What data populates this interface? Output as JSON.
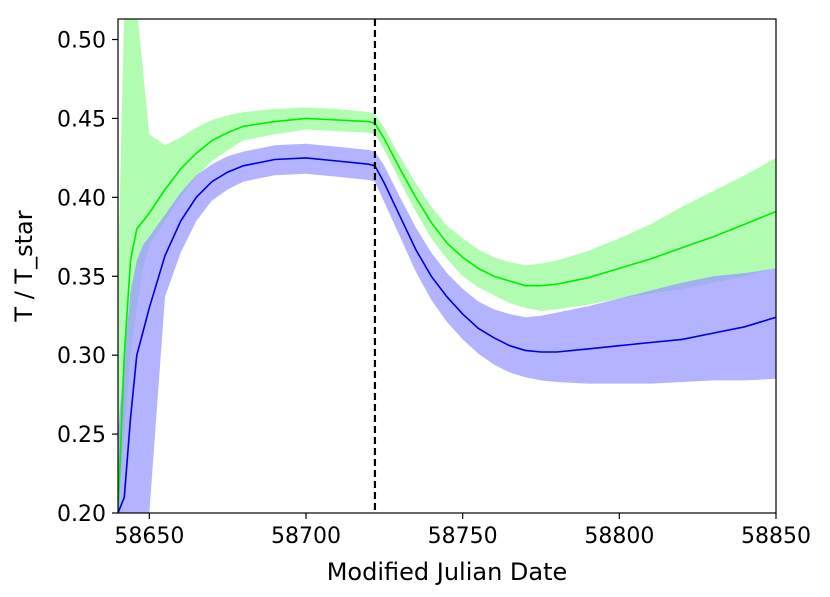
{
  "chart_data": {
    "type": "line",
    "title": "",
    "xlabel": "Modified Julian Date",
    "ylabel": "T / T_star",
    "xlim": [
      58640,
      58850
    ],
    "ylim": [
      0.2,
      0.513
    ],
    "xticks": [
      58650,
      58700,
      58750,
      58800,
      58850
    ],
    "yticks": [
      0.2,
      0.25,
      0.3,
      0.35,
      0.4,
      0.45,
      0.5
    ],
    "grid": false,
    "legend": "none",
    "vertical_line": {
      "x": 58722,
      "style": "dashed",
      "color": "#000000"
    },
    "series": [
      {
        "color": "#00ee00",
        "band_color": "#98fb98",
        "x": [
          58640,
          58642,
          58644,
          58646,
          58648,
          58650,
          58655,
          58660,
          58665,
          58670,
          58675,
          58680,
          58690,
          58700,
          58710,
          58720,
          58722,
          58725,
          58730,
          58735,
          58740,
          58745,
          58750,
          58755,
          58760,
          58765,
          58770,
          58775,
          58780,
          58790,
          58800,
          58810,
          58820,
          58830,
          58840,
          58850
        ],
        "y": [
          0.2,
          0.3,
          0.36,
          0.38,
          0.385,
          0.39,
          0.405,
          0.418,
          0.428,
          0.436,
          0.441,
          0.445,
          0.448,
          0.45,
          0.449,
          0.448,
          0.447,
          0.437,
          0.418,
          0.4,
          0.384,
          0.371,
          0.362,
          0.355,
          0.35,
          0.347,
          0.344,
          0.344,
          0.345,
          0.349,
          0.355,
          0.361,
          0.368,
          0.375,
          0.383,
          0.391
        ],
        "upper": [
          0.35,
          0.52,
          0.53,
          0.52,
          0.48,
          0.44,
          0.433,
          0.438,
          0.444,
          0.449,
          0.452,
          0.454,
          0.456,
          0.457,
          0.456,
          0.454,
          0.453,
          0.444,
          0.426,
          0.409,
          0.394,
          0.382,
          0.374,
          0.367,
          0.362,
          0.359,
          0.357,
          0.358,
          0.36,
          0.366,
          0.374,
          0.383,
          0.394,
          0.404,
          0.414,
          0.425
        ],
        "lower": [
          0.2,
          0.25,
          0.3,
          0.33,
          0.355,
          0.37,
          0.385,
          0.4,
          0.413,
          0.423,
          0.43,
          0.436,
          0.44,
          0.443,
          0.442,
          0.441,
          0.44,
          0.43,
          0.41,
          0.391,
          0.374,
          0.361,
          0.35,
          0.343,
          0.338,
          0.333,
          0.33,
          0.328,
          0.329,
          0.332,
          0.336,
          0.339,
          0.342,
          0.346,
          0.35,
          0.355
        ]
      },
      {
        "color": "#0000dd",
        "band_color": "#9999ff",
        "x": [
          58640,
          58642,
          58644,
          58646,
          58648,
          58650,
          58655,
          58660,
          58665,
          58670,
          58675,
          58680,
          58690,
          58700,
          58710,
          58720,
          58722,
          58725,
          58730,
          58735,
          58740,
          58745,
          58750,
          58755,
          58760,
          58765,
          58770,
          58775,
          58780,
          58790,
          58800,
          58810,
          58820,
          58830,
          58840,
          58850
        ],
        "y": [
          0.2,
          0.21,
          0.26,
          0.3,
          0.315,
          0.33,
          0.363,
          0.385,
          0.4,
          0.41,
          0.416,
          0.42,
          0.424,
          0.425,
          0.423,
          0.421,
          0.42,
          0.409,
          0.388,
          0.367,
          0.35,
          0.337,
          0.326,
          0.317,
          0.311,
          0.306,
          0.303,
          0.302,
          0.302,
          0.304,
          0.306,
          0.308,
          0.31,
          0.314,
          0.318,
          0.324
        ],
        "upper": [
          0.25,
          0.3,
          0.34,
          0.36,
          0.37,
          0.375,
          0.389,
          0.403,
          0.414,
          0.421,
          0.426,
          0.429,
          0.433,
          0.434,
          0.432,
          0.43,
          0.429,
          0.42,
          0.4,
          0.381,
          0.365,
          0.352,
          0.342,
          0.334,
          0.329,
          0.326,
          0.324,
          0.325,
          0.327,
          0.331,
          0.336,
          0.341,
          0.346,
          0.35,
          0.352,
          0.355
        ],
        "lower": [
          0.2,
          0.2,
          0.2,
          0.2,
          0.2,
          0.2,
          0.337,
          0.365,
          0.385,
          0.398,
          0.405,
          0.41,
          0.414,
          0.415,
          0.413,
          0.411,
          0.41,
          0.397,
          0.375,
          0.353,
          0.335,
          0.321,
          0.31,
          0.301,
          0.294,
          0.289,
          0.286,
          0.284,
          0.283,
          0.282,
          0.282,
          0.282,
          0.283,
          0.284,
          0.284,
          0.285
        ]
      }
    ]
  }
}
